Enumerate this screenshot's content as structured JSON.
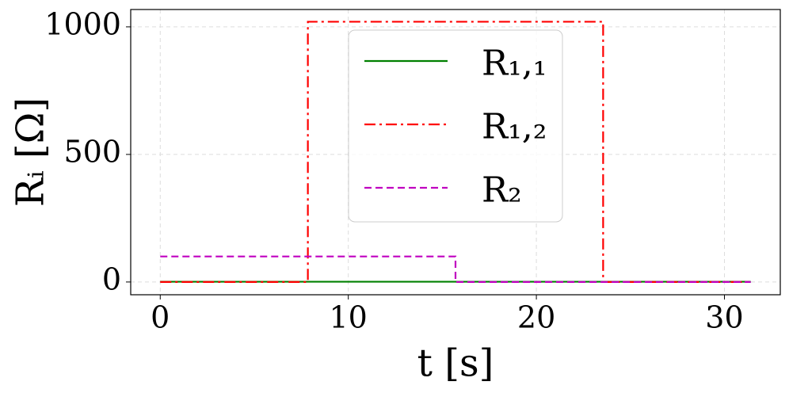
{
  "chart_data": {
    "type": "line",
    "xlabel": "t [s]",
    "ylabel": "Rᵢ [Ω]",
    "xlim": [
      -1.57,
      32.97
    ],
    "ylim": [
      -50,
      1068
    ],
    "xticks": [
      0,
      10,
      20,
      30
    ],
    "yticks": [
      0,
      500,
      1000
    ],
    "grid": true,
    "legend": "upper center",
    "series": [
      {
        "name": "R₁,₁",
        "color": "#008000",
        "style": "solid",
        "x": [
          0,
          31.4
        ],
        "values": [
          1,
          1
        ]
      },
      {
        "name": "R₁,₂",
        "color": "#ff0000",
        "style": "dashdot",
        "x": [
          0,
          7.85,
          7.85,
          23.55,
          23.55,
          31.4
        ],
        "values": [
          0,
          0,
          1020,
          1020,
          0,
          0
        ]
      },
      {
        "name": "R₂",
        "color": "#c000c0",
        "style": "dashed",
        "x": [
          0,
          15.7,
          15.7,
          31.4
        ],
        "values": [
          100,
          100,
          0,
          0
        ]
      }
    ]
  }
}
